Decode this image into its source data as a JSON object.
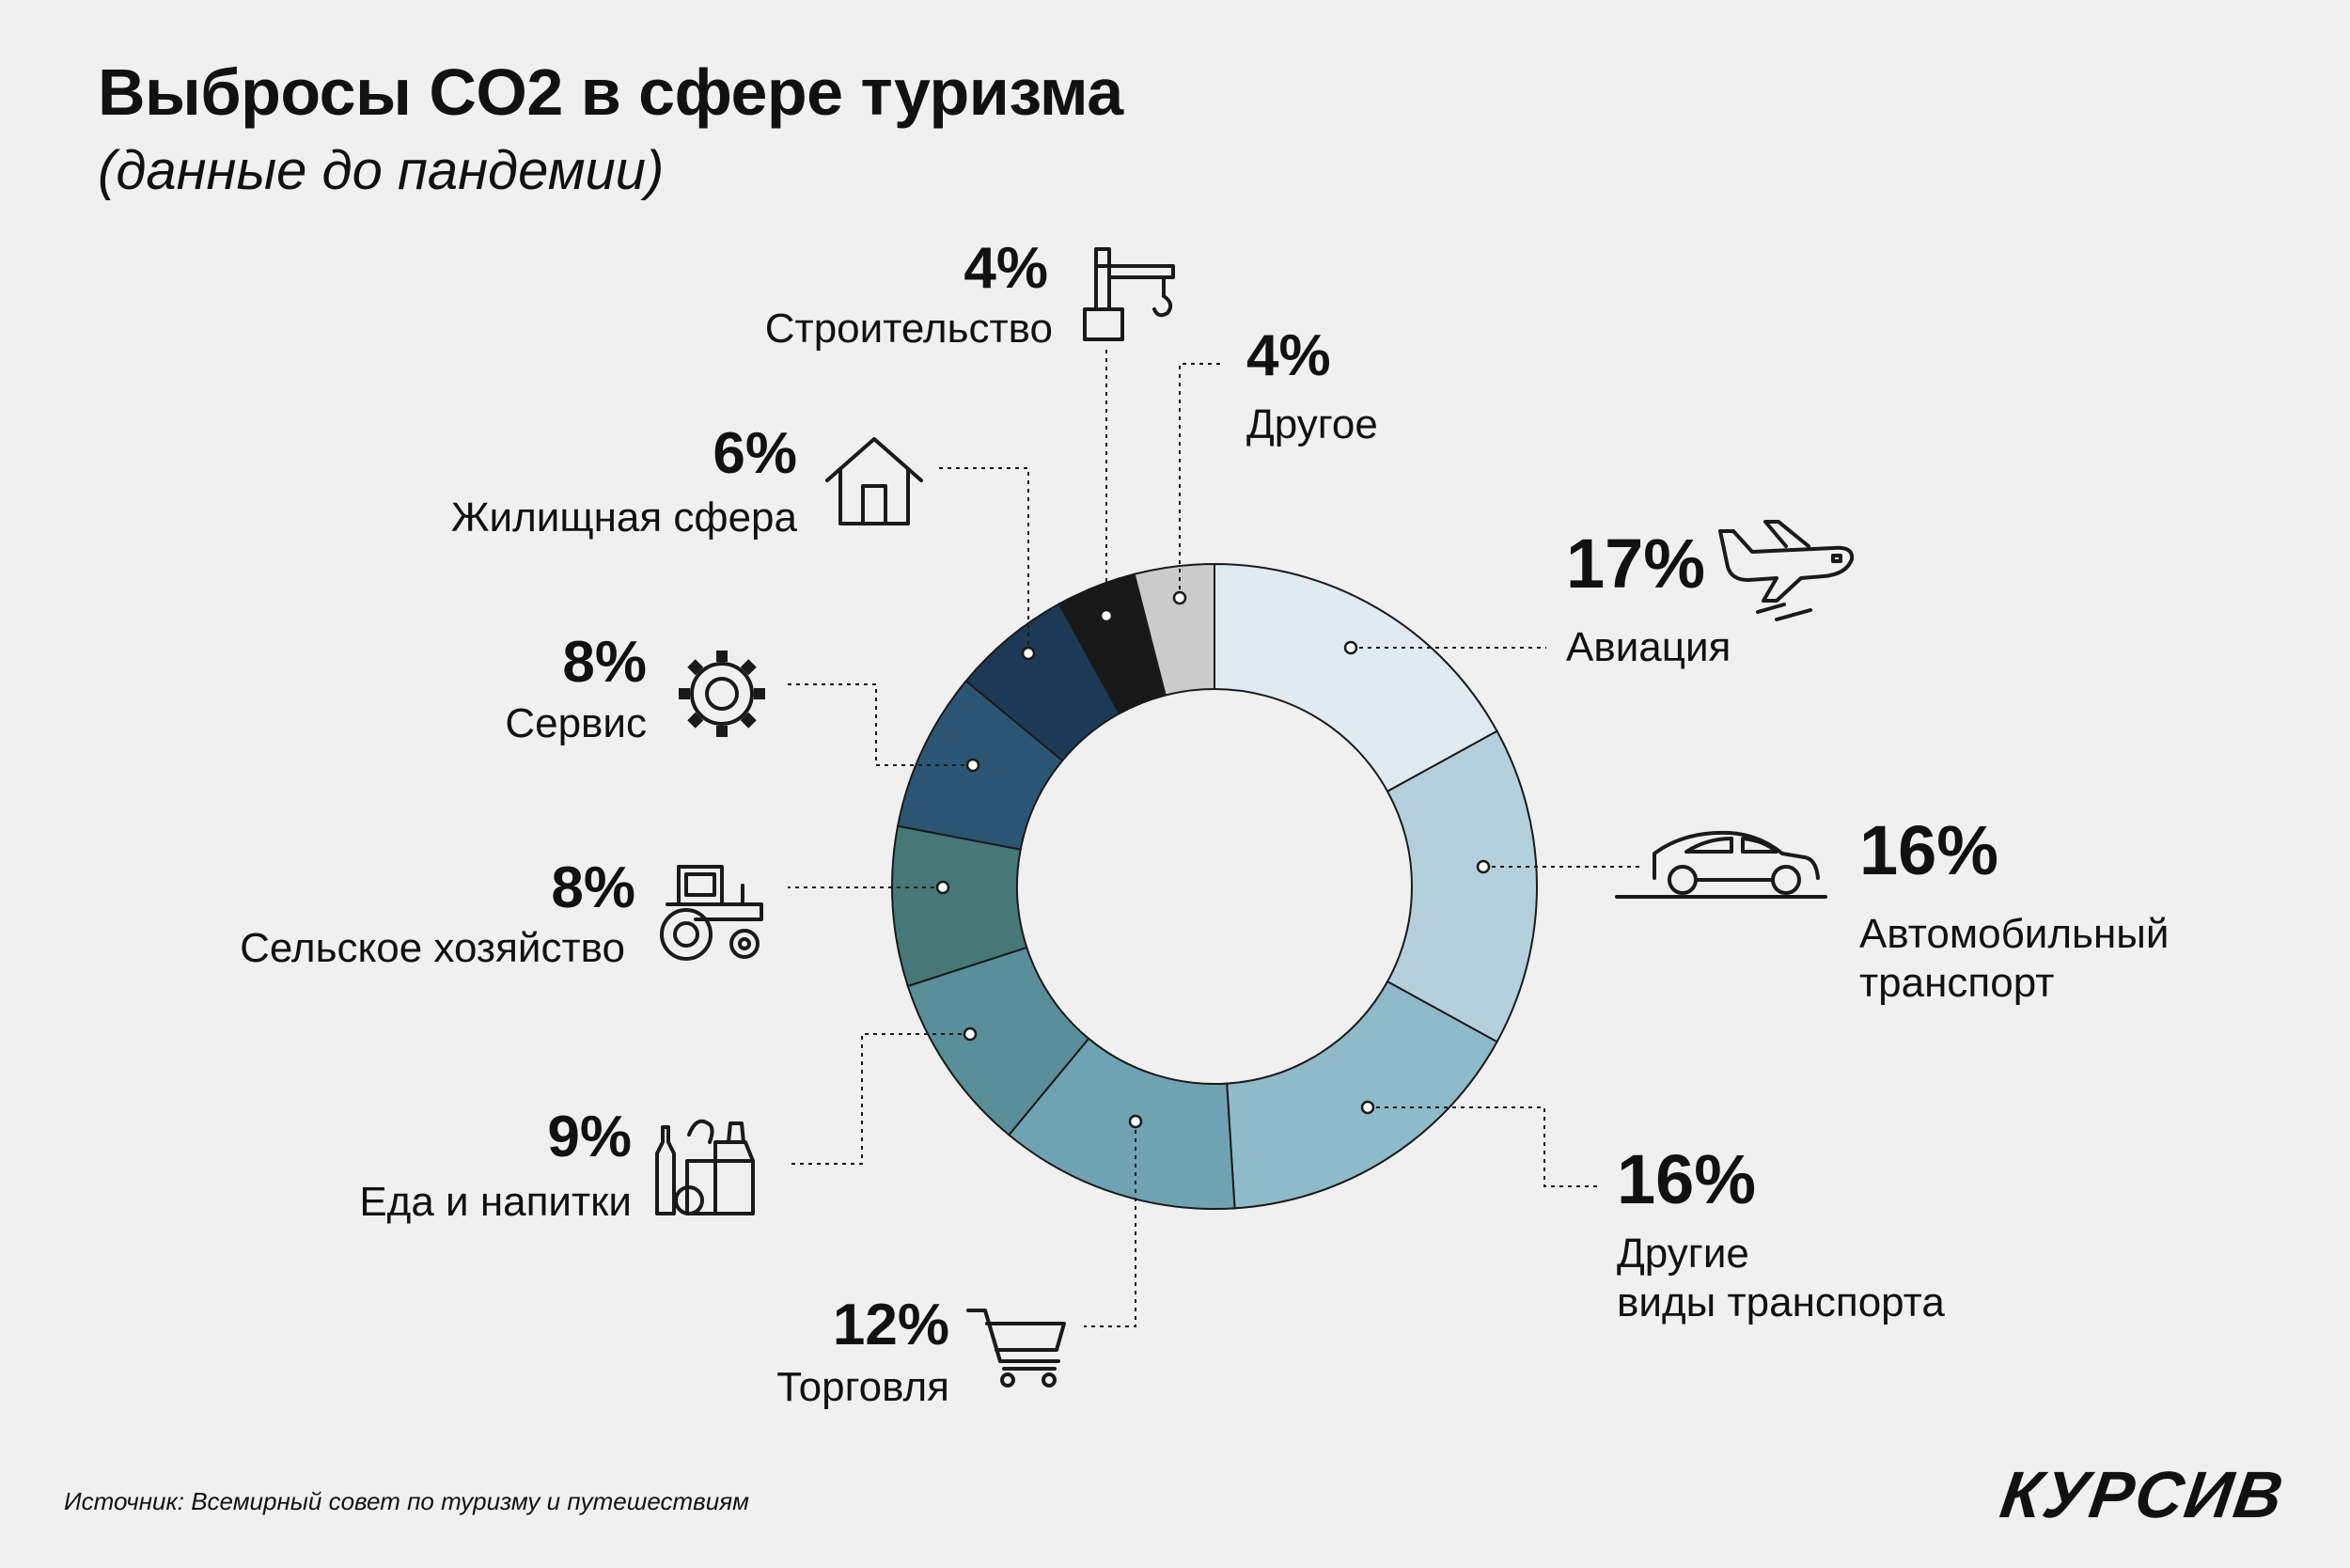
{
  "header": {
    "title": "Выбросы CO2 в сфере туризма",
    "subtitle": "(данные до пандемии)"
  },
  "footer": {
    "source": "Источник: Всемирный совет по туризму и путешествиям",
    "brand": "КУРСИВ"
  },
  "chart_data": {
    "type": "pie",
    "donut": true,
    "unit": "%",
    "slices": [
      {
        "label": "Авиация",
        "value": 17,
        "value_label": "17%",
        "color": "#e0ebf1",
        "icon": "airplane-icon"
      },
      {
        "label": "Автомобильный транспорт",
        "label_lines": [
          "Автомобильный",
          "транспорт"
        ],
        "value": 16,
        "value_label": "16%",
        "color": "#b3d0dc",
        "icon": "car-icon"
      },
      {
        "label": "Другие виды транспорта",
        "label_lines": [
          "Другие",
          "виды транспорта"
        ],
        "value": 16,
        "value_label": "16%",
        "color": "#8fbaca",
        "icon": ""
      },
      {
        "label": "Торговля",
        "value": 12,
        "value_label": "12%",
        "color": "#6fa3b3",
        "icon": "shopping-cart-icon"
      },
      {
        "label": "Еда и напитки",
        "value": 9,
        "value_label": "9%",
        "color": "#5a8e98",
        "icon": "groceries-icon"
      },
      {
        "label": "Сельское хозяйство",
        "value": 8,
        "value_label": "8%",
        "color": "#467878",
        "icon": "tractor-icon"
      },
      {
        "label": "Сервис",
        "value": 8,
        "value_label": "8%",
        "color": "#2c5574",
        "icon": "gear-icon"
      },
      {
        "label": "Жилищная сфера",
        "value": 6,
        "value_label": "6%",
        "color": "#1c3a56",
        "icon": "house-icon"
      },
      {
        "label": "Строительство",
        "value": 4,
        "value_label": "4%",
        "color": "#181818",
        "icon": "crane-icon"
      },
      {
        "label": "Другое",
        "value": 4,
        "value_label": "4%",
        "color": "#cbcbcb",
        "icon": ""
      }
    ]
  }
}
